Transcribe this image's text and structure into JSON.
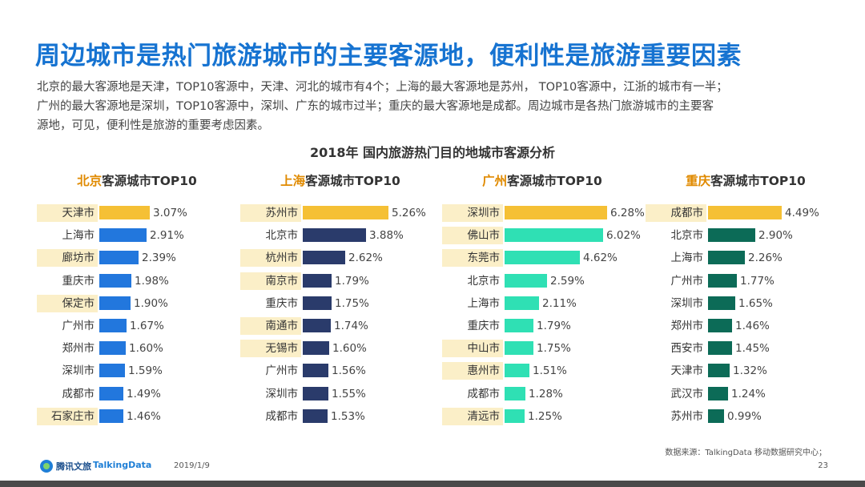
{
  "title": "周边城市是热门旅游城市的主要客源地，便利性是旅游重要因素",
  "description": [
    "北京的最大客源地是天津，TOP10客源中，天津、河北的城市有4个；上海的最大客源地是苏州， TOP10客源中，江浙的城市有一半；",
    "广州的最大客源地是深圳，TOP10客源中，深圳、广东的城市过半；重庆的最大客源地是成都。周边城市是各热门旅游城市的主要客",
    "源地，可见，便利性是旅游的重要考虑因素。"
  ],
  "source": "数据来源：TalkingData  移动数据研究中心；",
  "footer": {
    "logo_text": "腾讯文旅",
    "brand": "TalkingData",
    "date": "2019/1/9",
    "page": "23"
  },
  "chart_data": {
    "type": "bar",
    "title": "2018年 国内旅游热门目的地城市客源分析",
    "panels": [
      {
        "city": "北京",
        "suffix": "客源城市TOP10",
        "bar_color": "#2277dd",
        "top_color": "#f5c035",
        "categories": [
          "天津市",
          "上海市",
          "廊坊市",
          "重庆市",
          "保定市",
          "广州市",
          "郑州市",
          "深圳市",
          "成都市",
          "石家庄市"
        ],
        "values": [
          3.07,
          2.91,
          2.39,
          1.98,
          1.9,
          1.67,
          1.6,
          1.59,
          1.49,
          1.46
        ],
        "labels": [
          "3.07%",
          "2.91%",
          "2.39%",
          "1.98%",
          "1.90%",
          "1.67%",
          "1.60%",
          "1.59%",
          "1.49%",
          "1.46%"
        ],
        "highlight": [
          true,
          false,
          true,
          false,
          true,
          false,
          false,
          false,
          false,
          true
        ]
      },
      {
        "city": "上海",
        "suffix": "客源城市TOP10",
        "bar_color": "#2a3b6b",
        "top_color": "#f5c035",
        "categories": [
          "苏州市",
          "北京市",
          "杭州市",
          "南京市",
          "重庆市",
          "南通市",
          "无锡市",
          "广州市",
          "深圳市",
          "成都市"
        ],
        "values": [
          5.26,
          3.88,
          2.62,
          1.79,
          1.75,
          1.74,
          1.6,
          1.56,
          1.55,
          1.53
        ],
        "labels": [
          "5.26%",
          "3.88%",
          "2.62%",
          "1.79%",
          "1.75%",
          "1.74%",
          "1.60%",
          "1.56%",
          "1.55%",
          "1.53%"
        ],
        "highlight": [
          true,
          false,
          true,
          true,
          false,
          true,
          true,
          false,
          false,
          false
        ]
      },
      {
        "city": "广州",
        "suffix": "客源城市TOP10",
        "bar_color": "#2fe0b4",
        "top_color": "#f5c035",
        "categories": [
          "深圳市",
          "佛山市",
          "东莞市",
          "北京市",
          "上海市",
          "重庆市",
          "中山市",
          "惠州市",
          "成都市",
          "清远市"
        ],
        "values": [
          6.28,
          6.02,
          4.62,
          2.59,
          2.11,
          1.79,
          1.75,
          1.51,
          1.28,
          1.25
        ],
        "labels": [
          "6.28%",
          "6.02%",
          "4.62%",
          "2.59%",
          "2.11%",
          "1.79%",
          "1.75%",
          "1.51%",
          "1.28%",
          "1.25%"
        ],
        "highlight": [
          true,
          true,
          true,
          false,
          false,
          false,
          true,
          true,
          false,
          true
        ]
      },
      {
        "city": "重庆",
        "suffix": "客源城市TOP10",
        "bar_color": "#0c6b57",
        "top_color": "#f5c035",
        "categories": [
          "成都市",
          "北京市",
          "上海市",
          "广州市",
          "深圳市",
          "郑州市",
          "西安市",
          "天津市",
          "武汉市",
          "苏州市"
        ],
        "values": [
          4.49,
          2.9,
          2.26,
          1.77,
          1.65,
          1.46,
          1.45,
          1.32,
          1.24,
          0.99
        ],
        "labels": [
          "4.49%",
          "2.90%",
          "2.26%",
          "1.77%",
          "1.65%",
          "1.46%",
          "1.45%",
          "1.32%",
          "1.24%",
          "0.99%"
        ],
        "highlight": [
          true,
          false,
          false,
          false,
          false,
          false,
          false,
          false,
          false,
          false
        ]
      }
    ]
  }
}
